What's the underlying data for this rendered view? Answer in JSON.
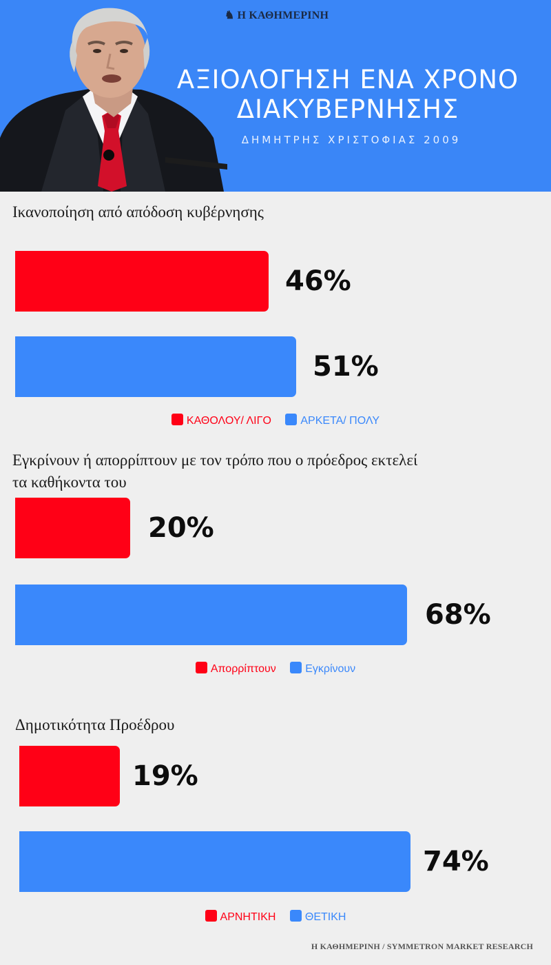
{
  "header": {
    "brand": "Η ΚΑΘΗΜΕΡΙΝΗ",
    "title": "ΑΞΙΟΛΟΓΗΣΗ ΕΝΑ ΧΡΟΝΟ ΔΙΑΚΥΒΕΡΝΗΣΗΣ",
    "subtitle": "ΔΗΜΗΤΡΗΣ ΧΡΙΣΤΟΦΙΑΣ 2009",
    "background_color": "#3a86f7"
  },
  "colors": {
    "negative": "#ff0016",
    "positive": "#3a88fb"
  },
  "chart_data": [
    {
      "type": "bar",
      "orientation": "horizontal",
      "title": "Ικανοποίηση από απόδοση κυβέρνησης",
      "xlim": [
        0,
        70
      ],
      "series": [
        {
          "name": "ΚΑΘΟΛΟΥ/ ΛΙΓΟ",
          "value": 46,
          "label": "46%",
          "color": "#ff0016"
        },
        {
          "name": "ΑΡΚΕΤΑ/ ΠΟΛΥ",
          "value": 51,
          "label": "51%",
          "color": "#3a88fb"
        }
      ],
      "legend": "bottom-center"
    },
    {
      "type": "bar",
      "orientation": "horizontal",
      "title": "Εγκρίνουν ή απορρίπτουν με τον τρόπο που ο πρόεδρος εκτελεί τα καθήκοντα του",
      "xlim": [
        0,
        80
      ],
      "series": [
        {
          "name": "Απορρίπτουν",
          "value": 20,
          "label": "20%",
          "color": "#ff0016"
        },
        {
          "name": "Εγκρίνουν",
          "value": 68,
          "label": "68%",
          "color": "#3a88fb"
        }
      ],
      "legend": "bottom-center"
    },
    {
      "type": "bar",
      "orientation": "horizontal",
      "title": "Δημοτικότητα Προέδρου",
      "xlim": [
        0,
        85
      ],
      "series": [
        {
          "name": "ΑΡΝΗΤΙΚΗ",
          "value": 19,
          "label": "19%",
          "color": "#ff0016"
        },
        {
          "name": "ΘΕΤΙΚΗ",
          "value": 74,
          "label": "74%",
          "color": "#3a88fb"
        }
      ],
      "legend": "bottom-center"
    }
  ],
  "source": "Η ΚΑΘΗΜΕΡΙΝΗ / SYMMETRON MARKET RESEARCH"
}
